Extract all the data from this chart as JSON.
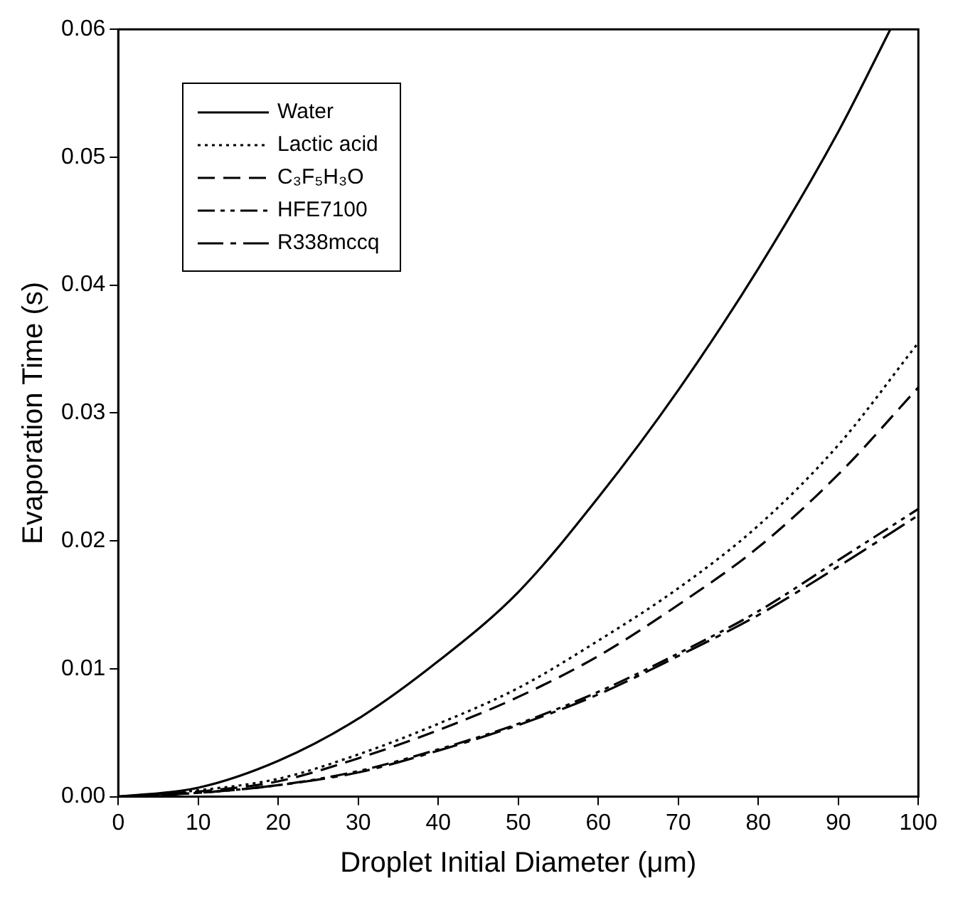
{
  "chart_data": {
    "type": "line",
    "xlabel": "Droplet Initial Diameter (μm)",
    "ylabel": "Evaporation Time (s)",
    "xlim": [
      0,
      100
    ],
    "xticks": [
      0,
      10,
      20,
      30,
      40,
      50,
      60,
      70,
      80,
      90,
      100
    ],
    "ylim": [
      0,
      0.06
    ],
    "yticks": [
      {
        "value": 0,
        "label": "0.00"
      },
      0.01,
      0.02,
      0.03,
      0.04,
      0.05,
      0.06
    ],
    "grid": false,
    "legend": "top left",
    "marker": "none",
    "series": [
      {
        "name": "Water",
        "color": "#000000",
        "line_style": "solid",
        "x": [
          0,
          10,
          20,
          30,
          40,
          50,
          60,
          70,
          80,
          90,
          96.5
        ],
        "values": [
          0,
          0.0007,
          0.0028,
          0.0061,
          0.0106,
          0.016,
          0.0234,
          0.0318,
          0.0413,
          0.052,
          0.06
        ]
      },
      {
        "name": "Lactic acid",
        "color": "#000000",
        "line_style": "dotted",
        "x": [
          0,
          10,
          20,
          30,
          40,
          50,
          60,
          70,
          80,
          90,
          100
        ],
        "values": [
          0,
          0.0005,
          0.0014,
          0.0033,
          0.0057,
          0.0085,
          0.0122,
          0.0163,
          0.0212,
          0.0275,
          0.0355
        ]
      },
      {
        "name": "C₃F₅H₃O",
        "color": "#000000",
        "line_style": "dashed",
        "x": [
          0,
          10,
          20,
          30,
          40,
          50,
          60,
          70,
          80,
          90,
          100
        ],
        "values": [
          0,
          0.0004,
          0.0012,
          0.003,
          0.0052,
          0.0078,
          0.011,
          0.015,
          0.0195,
          0.0252,
          0.032
        ]
      },
      {
        "name": "HFE7100",
        "color": "#000000",
        "line_style": "dashed",
        "x": [
          0,
          10,
          20,
          30,
          40,
          50,
          60,
          70,
          80,
          90,
          100
        ],
        "values": [
          0,
          0.0003,
          0.0009,
          0.002,
          0.0037,
          0.0057,
          0.0082,
          0.0112,
          0.0145,
          0.0185,
          0.0225
        ]
      },
      {
        "name": "R338mccq",
        "color": "#000000",
        "line_style": "dashed",
        "x": [
          0,
          10,
          20,
          30,
          40,
          50,
          60,
          70,
          80,
          90,
          100
        ],
        "values": [
          0,
          0.0003,
          0.0009,
          0.0019,
          0.0036,
          0.0056,
          0.008,
          0.011,
          0.0142,
          0.018,
          0.022
        ]
      }
    ]
  }
}
